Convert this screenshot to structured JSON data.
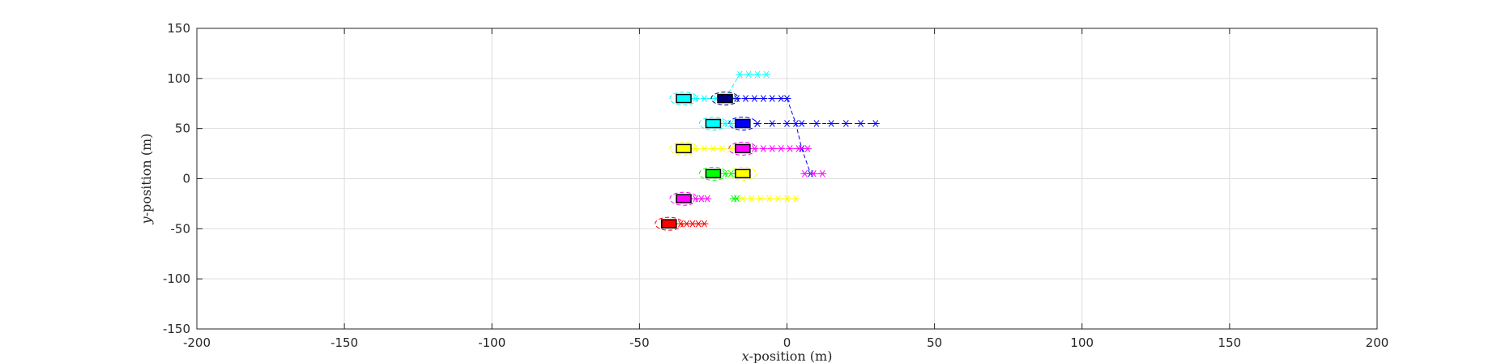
{
  "chart_data": {
    "type": "scatter",
    "title": "",
    "xlabel_var": "x",
    "xlabel_rest": "-position (m)",
    "ylabel_var": "y",
    "ylabel_rest": "-position (m)",
    "xlim": [
      -200,
      200
    ],
    "ylim": [
      -150,
      150
    ],
    "xticks": [
      -200,
      -150,
      -100,
      -50,
      0,
      50,
      100,
      150,
      200
    ],
    "yticks": [
      -150,
      -100,
      -50,
      0,
      50,
      100,
      150
    ],
    "xtick_labels": [
      "-200",
      "-150",
      "-100",
      "-50",
      "0",
      "50",
      "100",
      "150",
      "200"
    ],
    "ytick_labels": [
      "-150",
      "-100",
      "-50",
      "0",
      "50",
      "100",
      "150"
    ],
    "grid": true,
    "vehicles": [
      {
        "color": "#00ffff",
        "x": -35,
        "y": 80
      },
      {
        "color": "#00007f",
        "x": -21,
        "y": 80
      },
      {
        "color": "#00ffff",
        "x": -25,
        "y": 55
      },
      {
        "color": "#0000ff",
        "x": -15,
        "y": 55
      },
      {
        "color": "#ffff00",
        "x": -35,
        "y": 30
      },
      {
        "color": "#ff00ff",
        "x": -15,
        "y": 30
      },
      {
        "color": "#00ff00",
        "x": -25,
        "y": 5
      },
      {
        "color": "#ffff00",
        "x": -15,
        "y": 5
      },
      {
        "color": "#ff00ff",
        "x": -35,
        "y": -20
      },
      {
        "color": "#ff0000",
        "x": -40,
        "y": -45
      }
    ],
    "trajectories": [
      {
        "color": "#00ffff",
        "x": [
          -31,
          -28,
          -24,
          -21,
          -18
        ],
        "y": [
          80,
          80,
          80,
          80,
          80
        ]
      },
      {
        "color": "#00ffff",
        "x": [
          -21,
          -16,
          -13,
          -10,
          -7
        ],
        "y": [
          80,
          104,
          104,
          104,
          104
        ]
      },
      {
        "color": "#0000ff",
        "x": [
          -17,
          -14,
          -11,
          -8,
          -5,
          -2
        ],
        "y": [
          80,
          80,
          80,
          80,
          80,
          80
        ]
      },
      {
        "color": "#00ffff",
        "x": [
          -21,
          -19,
          -17
        ],
        "y": [
          55,
          55,
          55
        ]
      },
      {
        "color": "#0000ff",
        "x": [
          -10,
          -5,
          0,
          5,
          10,
          15,
          20,
          25,
          30
        ],
        "y": [
          55,
          55,
          55,
          55,
          55,
          55,
          55,
          55,
          55
        ]
      },
      {
        "color": "#0000ff",
        "x": [
          0,
          3,
          5,
          8
        ],
        "y": [
          80,
          55,
          30,
          5
        ]
      },
      {
        "color": "#ffff00",
        "x": [
          -31,
          -28,
          -25,
          -22,
          -19
        ],
        "y": [
          30,
          30,
          30,
          30,
          30
        ]
      },
      {
        "color": "#ff00ff",
        "x": [
          -11,
          -8,
          -5,
          -2,
          1,
          4,
          7
        ],
        "y": [
          30,
          30,
          30,
          30,
          30,
          30,
          30
        ]
      },
      {
        "color": "#ff00ff",
        "x": [
          6,
          9,
          12
        ],
        "y": [
          5,
          5,
          5
        ]
      },
      {
        "color": "#00ff00",
        "x": [
          -21,
          -19,
          -17
        ],
        "y": [
          5,
          5,
          5
        ]
      },
      {
        "color": "#00ff00",
        "x": [
          -18,
          -17
        ],
        "y": [
          -20,
          -20
        ]
      },
      {
        "color": "#ffff00",
        "x": [
          -15,
          -12,
          -9,
          -6,
          -3,
          0,
          3
        ],
        "y": [
          -20,
          -20,
          -20,
          -20,
          -20,
          -20,
          -20
        ]
      },
      {
        "color": "#ff00ff",
        "x": [
          -31,
          -29,
          -27
        ],
        "y": [
          -20,
          -20,
          -20
        ]
      },
      {
        "color": "#ff0000",
        "x": [
          -36,
          -34,
          -32,
          -30,
          -28
        ],
        "y": [
          -45,
          -45,
          -45,
          -45,
          -45
        ]
      }
    ]
  }
}
